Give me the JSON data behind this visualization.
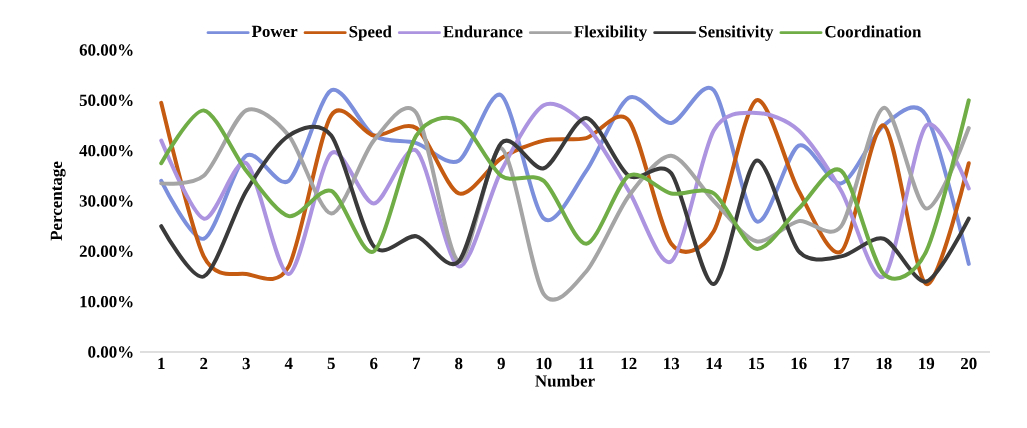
{
  "chart_data": {
    "type": "line",
    "xlabel": "Number",
    "ylabel": "Percentage",
    "categories": [
      "1",
      "2",
      "3",
      "4",
      "5",
      "6",
      "7",
      "8",
      "9",
      "10",
      "11",
      "12",
      "13",
      "14",
      "15",
      "16",
      "17",
      "18",
      "19",
      "20"
    ],
    "series": [
      {
        "name": "Power",
        "color": "#7b8fdc",
        "values": [
          34,
          22.5,
          39,
          34,
          52,
          43,
          41.5,
          38,
          51,
          26.5,
          36,
          50.5,
          45.5,
          52,
          26,
          41,
          33.5,
          45,
          47,
          17.5
        ]
      },
      {
        "name": "Speed",
        "color": "#c55a11",
        "values": [
          49.5,
          19,
          15.5,
          17,
          47,
          43,
          44.5,
          31.5,
          38.5,
          42,
          42.5,
          46,
          21.5,
          24,
          50,
          32,
          20,
          45,
          13.5,
          37.5
        ]
      },
      {
        "name": "Endurance",
        "color": "#ad94e0",
        "values": [
          42,
          26.5,
          37.5,
          15.5,
          39.5,
          29.5,
          40,
          17,
          36,
          49,
          45,
          32,
          18,
          44,
          47.5,
          44,
          32,
          15,
          45,
          32.5
        ]
      },
      {
        "name": "Flexibility",
        "color": "#a5a5a5",
        "values": [
          33.5,
          35,
          48,
          43,
          27.5,
          42,
          47.5,
          18,
          40.5,
          11.5,
          16,
          31,
          39,
          30,
          22,
          26,
          25,
          48.5,
          28.5,
          44.5
        ]
      },
      {
        "name": "Sensitivity",
        "color": "#3a3a3a",
        "values": [
          25,
          15,
          32,
          43,
          43,
          21,
          23,
          18,
          41.5,
          36.5,
          46.5,
          35,
          35.5,
          13.5,
          38,
          20,
          19,
          22.5,
          14,
          26.5
        ]
      },
      {
        "name": "Coordination",
        "color": "#70ad47",
        "values": [
          37.5,
          48,
          36,
          27,
          32,
          20,
          43,
          46,
          35,
          34,
          21.5,
          35,
          31.5,
          31.5,
          20.5,
          28.5,
          36,
          15.5,
          20,
          50
        ]
      }
    ],
    "ylim": [
      0,
      60
    ],
    "yticks": [
      {
        "value": 0,
        "label": "0.00%"
      },
      {
        "value": 10,
        "label": "10.00%"
      },
      {
        "value": 20,
        "label": "20.00%"
      },
      {
        "value": 30,
        "label": "30.00%"
      },
      {
        "value": 40,
        "label": "40.00%"
      },
      {
        "value": 50,
        "label": "50.00%"
      },
      {
        "value": 60,
        "label": "60.00%"
      }
    ],
    "grid": false,
    "legend": "top",
    "marker": "none",
    "line_style": "solid"
  }
}
